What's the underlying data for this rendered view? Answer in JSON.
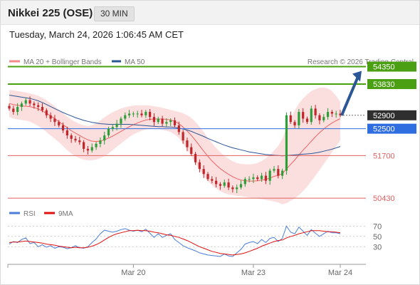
{
  "header": {
    "title": "Nikkei 225 (OSE)",
    "timeframe": "30 MIN"
  },
  "timestamp": "Tuesday, March 24, 2026 1:06:45 AM CET",
  "copyright": "Research © 2026 Trading Central",
  "colors": {
    "bollinger": "#f28a8a",
    "ma50": "#2b5797",
    "up_candle": "#2e9e3a",
    "down_candle": "#c0262a",
    "resistance": "#4aa012",
    "support": "#e06060",
    "pivot": "#2f6ee0",
    "last_price": "#2f2f2f",
    "arrow": "#2b5797",
    "rsi": "#4a7fd8",
    "rsi_ma": "#e01010"
  },
  "chart_data": [
    {
      "type": "candlestick",
      "title": "Nikkei 225 (OSE)",
      "timeframe": "30 MIN",
      "legend": [
        "MA 20 + Bollinger Bands",
        "MA 50"
      ],
      "x_ticks": [
        "Mar 20",
        "Mar 23",
        "Mar 24"
      ],
      "levels": [
        {
          "value": 54350,
          "label": "54350",
          "kind": "resistance",
          "style": "filled"
        },
        {
          "value": 53830,
          "label": "53830",
          "kind": "resistance",
          "style": "filled"
        },
        {
          "value": 52900,
          "label": "52900",
          "kind": "last",
          "style": "filled"
        },
        {
          "value": 52500,
          "label": "52500",
          "kind": "pivot",
          "style": "filled"
        },
        {
          "value": 51700,
          "label": "51700",
          "kind": "support",
          "style": "text"
        },
        {
          "value": 50430,
          "label": "50430",
          "kind": "support",
          "style": "text"
        }
      ],
      "ylim": [
        50200,
        54700
      ],
      "close": [
        53100,
        53000,
        53150,
        53250,
        53350,
        53250,
        53200,
        53150,
        53050,
        52900,
        52800,
        52700,
        52600,
        52450,
        52300,
        52200,
        52150,
        52100,
        51900,
        51850,
        51950,
        52050,
        52150,
        52300,
        52500,
        52550,
        52650,
        52800,
        52900,
        52950,
        52950,
        52950,
        52900,
        53000,
        52850,
        52700,
        52800,
        52650,
        52700,
        52750,
        52600,
        52400,
        52150,
        51950,
        51750,
        51500,
        51300,
        51150,
        51000,
        50950,
        50850,
        50800,
        50900,
        50750,
        50700,
        50750,
        50850,
        51000,
        51000,
        51050,
        51000,
        51100,
        50950,
        51250,
        51300,
        51100,
        51250,
        52900,
        52700,
        52600,
        53000,
        52800,
        52700,
        53100,
        52900,
        52750,
        52850,
        53000,
        52950,
        52950,
        52900
      ],
      "ma20": [
        53250,
        53220,
        53200,
        53180,
        53170,
        53160,
        53130,
        53090,
        53030,
        52960,
        52880,
        52800,
        52710,
        52620,
        52530,
        52440,
        52370,
        52300,
        52230,
        52170,
        52130,
        52120,
        52130,
        52170,
        52220,
        52280,
        52350,
        52420,
        52490,
        52560,
        52620,
        52670,
        52720,
        52760,
        52780,
        52790,
        52790,
        52790,
        52780,
        52760,
        52720,
        52650,
        52550,
        52430,
        52300,
        52150,
        51990,
        51830,
        51680,
        51540,
        51420,
        51310,
        51220,
        51140,
        51070,
        51010,
        50970,
        50950,
        50940,
        50940,
        50950,
        50970,
        50990,
        51030,
        51080,
        51110,
        51160,
        51300,
        51440,
        51570,
        51720,
        51860,
        51990,
        52130,
        52260,
        52380,
        52490,
        52590,
        52670,
        52740,
        52800
      ],
      "bb_upper": [
        53650,
        53640,
        53620,
        53600,
        53580,
        53550,
        53520,
        53480,
        53420,
        53350,
        53260,
        53170,
        53060,
        52960,
        52860,
        52770,
        52700,
        52640,
        52600,
        52580,
        52600,
        52660,
        52750,
        52840,
        52920,
        52990,
        53050,
        53100,
        53140,
        53170,
        53190,
        53200,
        53200,
        53200,
        53190,
        53170,
        53150,
        53120,
        53090,
        53060,
        53030,
        53000,
        52960,
        52900,
        52820,
        52700,
        52560,
        52400,
        52230,
        52070,
        51930,
        51800,
        51690,
        51600,
        51530,
        51480,
        51450,
        51440,
        51440,
        51450,
        51480,
        51540,
        51620,
        51720,
        51850,
        51990,
        52200,
        52500,
        52800,
        53050,
        53250,
        53400,
        53520,
        53620,
        53680,
        53720,
        53730,
        53700,
        53620,
        53480,
        53300
      ],
      "bb_lower": [
        52850,
        52800,
        52780,
        52760,
        52740,
        52710,
        52650,
        52580,
        52500,
        52400,
        52300,
        52200,
        52100,
        51980,
        51860,
        51760,
        51680,
        51620,
        51580,
        51560,
        51560,
        51580,
        51620,
        51680,
        51760,
        51860,
        51960,
        52060,
        52160,
        52250,
        52330,
        52390,
        52440,
        52480,
        52500,
        52500,
        52490,
        52470,
        52440,
        52400,
        52330,
        52220,
        52060,
        51880,
        51680,
        51480,
        51280,
        51100,
        50940,
        50820,
        50720,
        50640,
        50580,
        50540,
        50520,
        50500,
        50490,
        50470,
        50450,
        50440,
        50420,
        50400,
        50380,
        50360,
        50330,
        50300,
        50250,
        50280,
        50350,
        50420,
        50520,
        50640,
        50780,
        50940,
        51100,
        51270,
        51450,
        51620,
        51800,
        51980,
        52150
      ],
      "ma50": [
        53500,
        53480,
        53460,
        53440,
        53420,
        53400,
        53370,
        53330,
        53280,
        53220,
        53160,
        53100,
        53040,
        52980,
        52930,
        52880,
        52830,
        52790,
        52750,
        52720,
        52690,
        52670,
        52650,
        52640,
        52630,
        52630,
        52630,
        52630,
        52630,
        52630,
        52620,
        52610,
        52600,
        52590,
        52580,
        52570,
        52560,
        52560,
        52550,
        52550,
        52540,
        52520,
        52490,
        52460,
        52420,
        52370,
        52320,
        52270,
        52210,
        52160,
        52110,
        52060,
        52010,
        51970,
        51930,
        51900,
        51870,
        51840,
        51810,
        51790,
        51770,
        51750,
        51730,
        51720,
        51710,
        51700,
        51690,
        51700,
        51710,
        51720,
        51730,
        51740,
        51750,
        51760,
        51780,
        51800,
        51830,
        51860,
        51890,
        51930,
        51970
      ]
    },
    {
      "type": "line",
      "legend": [
        "RSI",
        "9MA"
      ],
      "y_ticks": [
        70,
        50,
        30
      ],
      "ylim": [
        0,
        80
      ],
      "series": [
        {
          "name": "RSI",
          "values": [
            35,
            40,
            38,
            44,
            47,
            36,
            38,
            30,
            34,
            29,
            32,
            27,
            30,
            29,
            26,
            28,
            32,
            28,
            27,
            30,
            38,
            45,
            55,
            62,
            60,
            58,
            60,
            63,
            65,
            62,
            60,
            62,
            59,
            64,
            56,
            48,
            55,
            48,
            52,
            55,
            44,
            38,
            32,
            28,
            25,
            22,
            18,
            16,
            14,
            13,
            12,
            11,
            16,
            12,
            11,
            18,
            25,
            35,
            38,
            40,
            36,
            44,
            38,
            46,
            48,
            40,
            46,
            70,
            58,
            55,
            68,
            60,
            52,
            63,
            56,
            50,
            55,
            60,
            57,
            57,
            55
          ]
        },
        {
          "name": "9MA",
          "values": [
            38,
            39,
            39,
            40,
            41,
            40,
            39,
            38,
            37,
            35,
            34,
            33,
            31,
            30,
            29,
            28,
            29,
            28,
            28,
            29,
            31,
            34,
            38,
            43,
            48,
            52,
            55,
            57,
            59,
            61,
            61,
            62,
            61,
            61,
            60,
            58,
            57,
            55,
            53,
            52,
            50,
            48,
            45,
            42,
            38,
            34,
            30,
            27,
            24,
            21,
            19,
            17,
            16,
            15,
            14,
            15,
            16,
            18,
            21,
            24,
            27,
            31,
            34,
            37,
            40,
            42,
            43,
            47,
            50,
            52,
            55,
            57,
            59,
            61,
            61,
            61,
            60,
            59,
            59,
            58,
            57
          ]
        }
      ]
    }
  ]
}
